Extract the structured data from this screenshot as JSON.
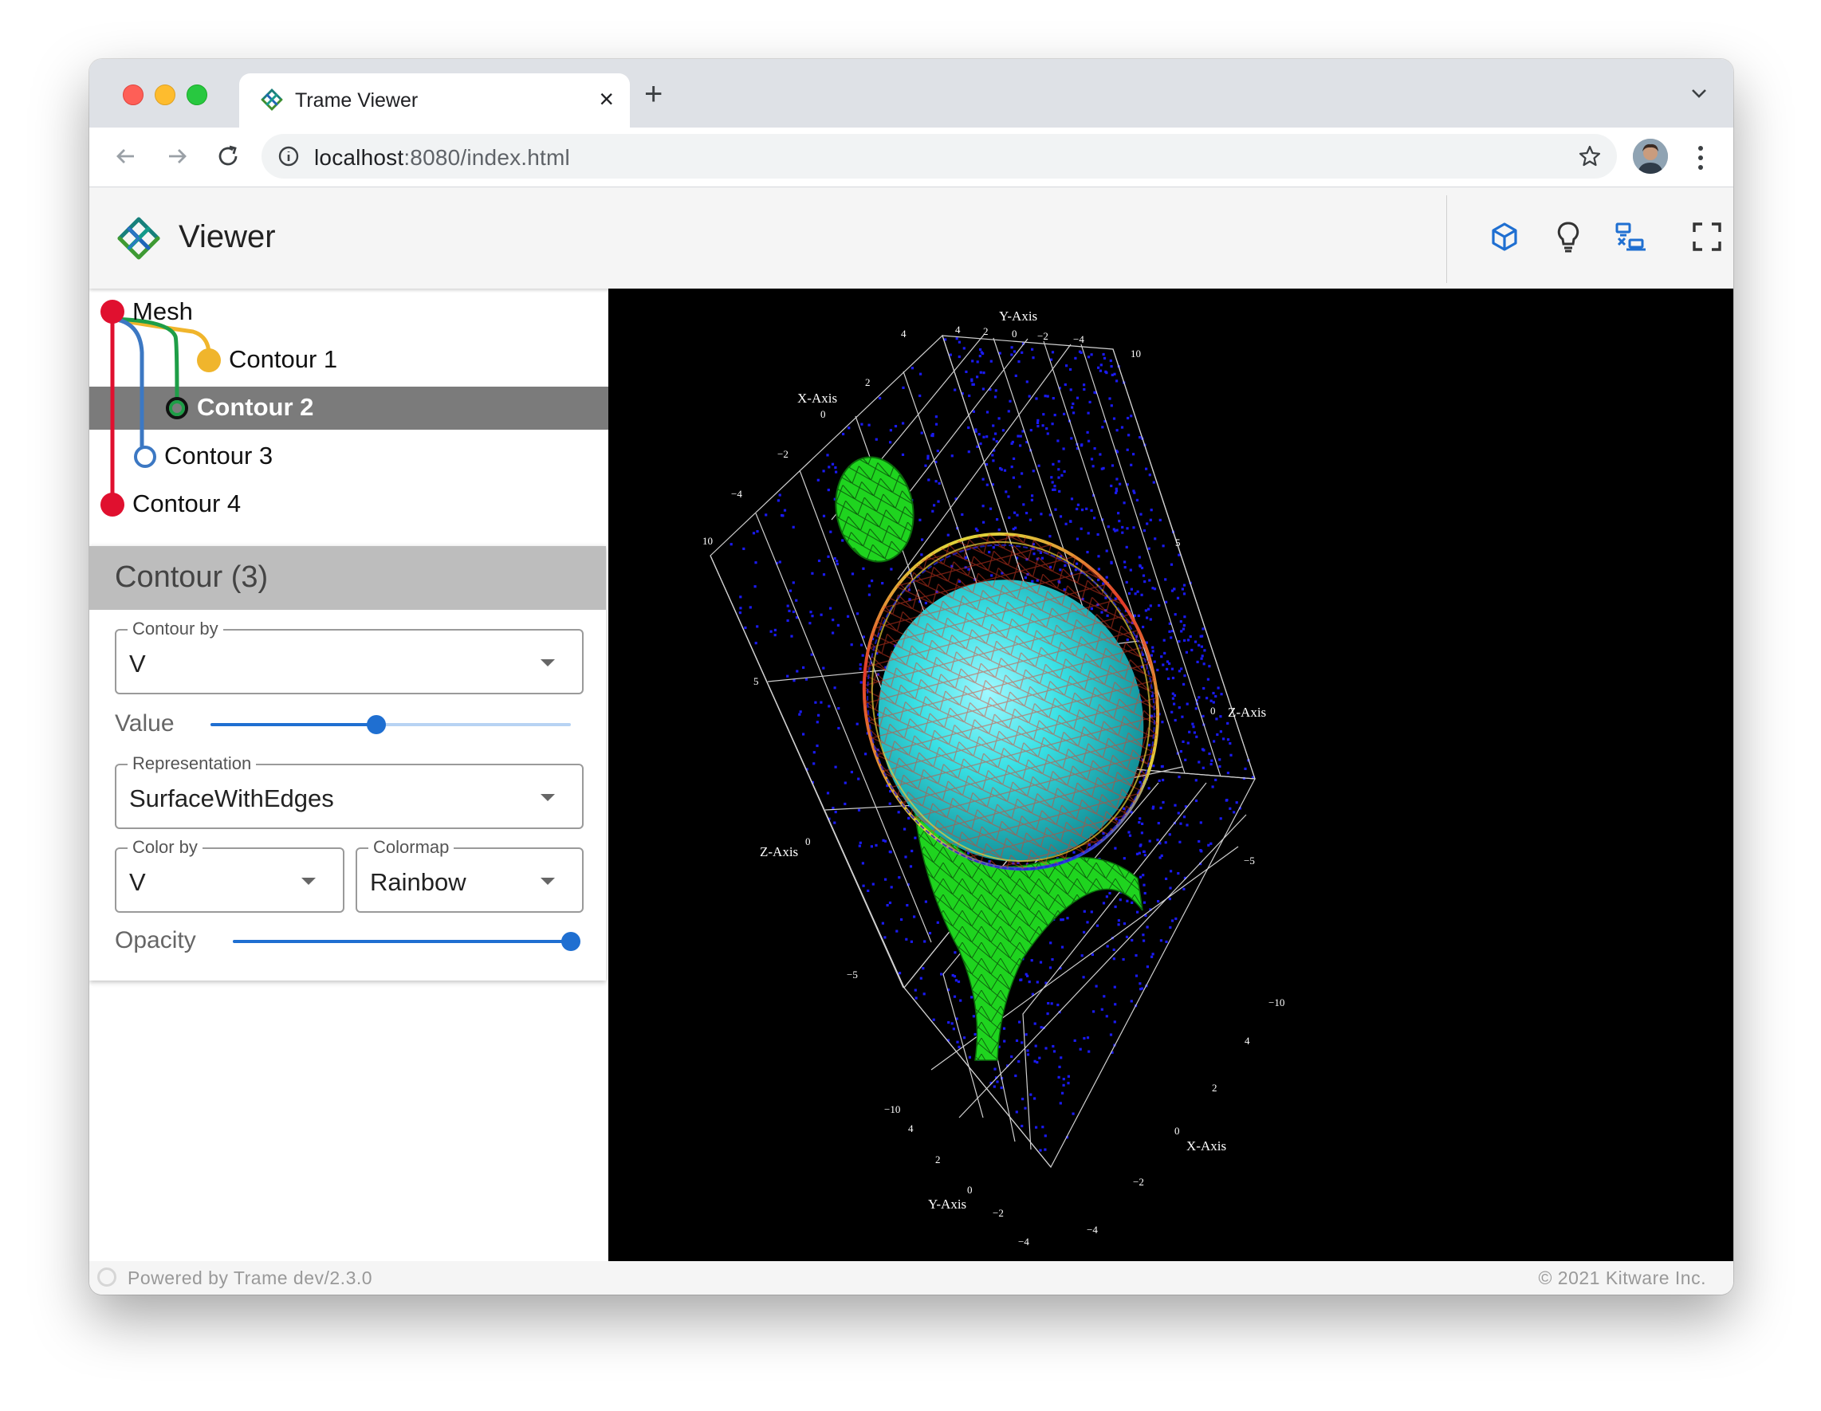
{
  "browser": {
    "tab_title": "Trame Viewer",
    "tab_close": "×",
    "new_tab": "+",
    "url_host": "localhost",
    "url_rest": ":8080/index.html"
  },
  "app": {
    "title": "Viewer",
    "toolbar_icons": [
      "cube-icon",
      "lightbulb-icon",
      "remote-local-icon",
      "fullscreen-icon"
    ]
  },
  "pipeline": [
    {
      "label": "Mesh",
      "color": "#e0102f"
    },
    {
      "label": "Contour 1",
      "color": "#f0b52c"
    },
    {
      "label": "Contour 2",
      "color": "#1e9e47",
      "selected": true
    },
    {
      "label": "Contour 3",
      "color": "#3c78c3"
    },
    {
      "label": "Contour 4",
      "color": "#e0102f"
    }
  ],
  "panel": {
    "title": "Contour (3)",
    "contour_by": {
      "label": "Contour by",
      "value": "V"
    },
    "value_slider": {
      "label": "Value",
      "level": 0.46
    },
    "representation": {
      "label": "Representation",
      "value": "SurfaceWithEdges"
    },
    "color_by": {
      "label": "Color by",
      "value": "V"
    },
    "colormap": {
      "label": "Colormap",
      "value": "Rainbow"
    },
    "opacity_slider": {
      "label": "Opacity",
      "level": 1.0
    }
  },
  "axes": {
    "y_top_title": "Y-Axis",
    "y_top_ticks": [
      "4",
      "2",
      "0",
      "−2",
      "−4"
    ],
    "x_left_title": "X-Axis",
    "x_left_ticks": [
      "4",
      "2",
      "0",
      "−2",
      "−4"
    ],
    "z_left_title": "Z-Axis",
    "z_left_ticks": [
      "10",
      "5",
      "0",
      "−5",
      "−10"
    ],
    "z_right_title": "Z-Axis",
    "z_right_ticks": [
      "10",
      "5",
      "0",
      "−5",
      "−10"
    ],
    "x_bottom_title": "X-Axis",
    "x_bottom_ticks": [
      "4",
      "2",
      "0",
      "−2",
      "−4"
    ],
    "y_bottom_title": "Y-Axis",
    "y_bottom_ticks": [
      "4",
      "2",
      "0",
      "−2",
      "−4"
    ]
  },
  "footer": {
    "powered": "Powered by Trame dev/2.3.0",
    "copyright": "© 2021 Kitware Inc."
  }
}
